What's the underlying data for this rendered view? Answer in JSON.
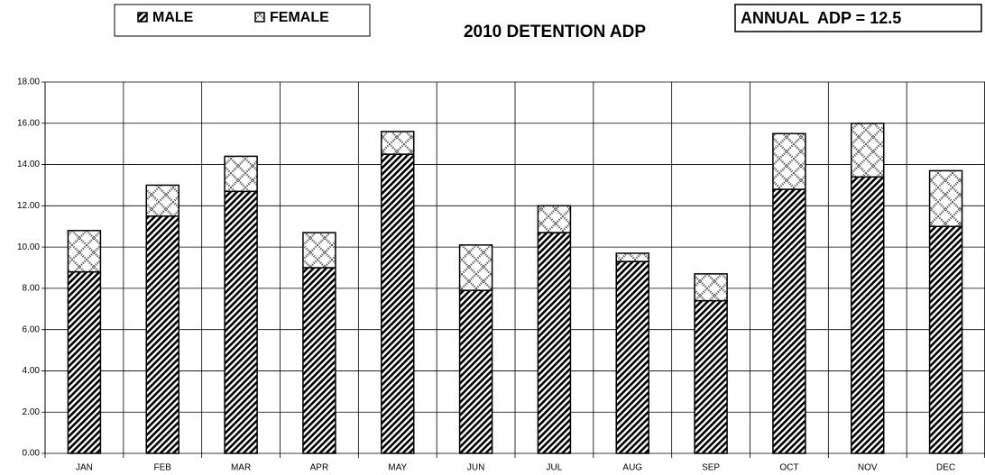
{
  "chart_data": {
    "type": "stacked_bar",
    "title": "2010 DETENTION ADP",
    "annotation": "ANNUAL  ADP = 12.5",
    "categories": [
      "JAN",
      "FEB",
      "MAR",
      "APR",
      "MAY",
      "JUN",
      "JUL",
      "AUG",
      "SEP",
      "OCT",
      "NOV",
      "DEC"
    ],
    "series": [
      {
        "name": "MALE",
        "pattern": "diagonal",
        "values": [
          8.8,
          11.5,
          12.7,
          9.0,
          14.5,
          7.9,
          10.7,
          9.3,
          7.4,
          12.8,
          13.4,
          11.0
        ]
      },
      {
        "name": "FEMALE",
        "pattern": "crosshatch",
        "values": [
          2.0,
          1.5,
          1.7,
          1.7,
          1.1,
          2.2,
          1.3,
          0.4,
          1.3,
          2.7,
          2.6,
          2.7
        ]
      }
    ],
    "ylim": [
      0,
      18
    ],
    "yticks": [
      {
        "value": 0,
        "label": "0.00"
      },
      {
        "value": 2,
        "label": "2.00"
      },
      {
        "value": 4,
        "label": "4.00"
      },
      {
        "value": 6,
        "label": "6.00"
      },
      {
        "value": 8,
        "label": "8.00"
      },
      {
        "value": 10,
        "label": "10.00"
      },
      {
        "value": 12,
        "label": "12.00"
      },
      {
        "value": 14,
        "label": "14.00"
      },
      {
        "value": 16,
        "label": "16.00"
      },
      {
        "value": 18,
        "label": "18.00"
      }
    ],
    "grid": true
  }
}
